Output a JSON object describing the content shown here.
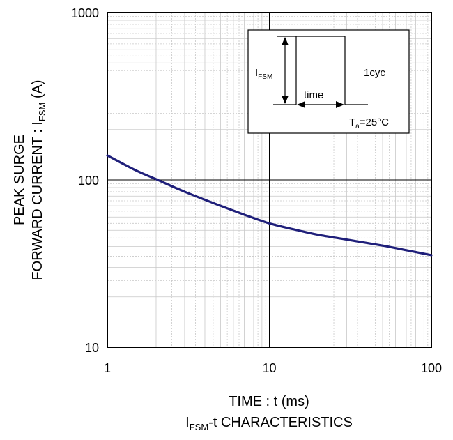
{
  "chart_data": {
    "type": "line",
    "x_scale": "log",
    "y_scale": "log",
    "xlim": [
      1,
      100
    ],
    "ylim": [
      10,
      1000
    ],
    "grid": true,
    "x_ticks": [
      "1",
      "10",
      "100"
    ],
    "y_ticks": [
      "10",
      "100",
      "1000"
    ],
    "xlabel": "TIME : t (ms)",
    "ylabel_line1": "PEAK SURGE",
    "ylabel_line2_prefix": "FORWARD CURRENT : I",
    "ylabel_line2_sub": "FSM",
    "ylabel_line2_suffix": " (A)",
    "caption_prefix": "I",
    "caption_sub": "FSM",
    "caption_suffix": "-t CHARACTERISTICS",
    "series": [
      {
        "color": "#1f1f7a",
        "x": [
          1,
          1.5,
          2,
          3,
          5,
          7,
          10,
          15,
          20,
          30,
          50,
          70,
          100
        ],
        "y": [
          140,
          114,
          101,
          85,
          70,
          62,
          55,
          50,
          47,
          44,
          40.5,
          38,
          35.5
        ]
      }
    ],
    "inset": {
      "ifsm_prefix": "I",
      "ifsm_sub": "FSM",
      "time_label": "time",
      "cycle_label": "1cyc",
      "temp_prefix": "T",
      "temp_sub": "a",
      "temp_suffix": "=25°C"
    }
  }
}
